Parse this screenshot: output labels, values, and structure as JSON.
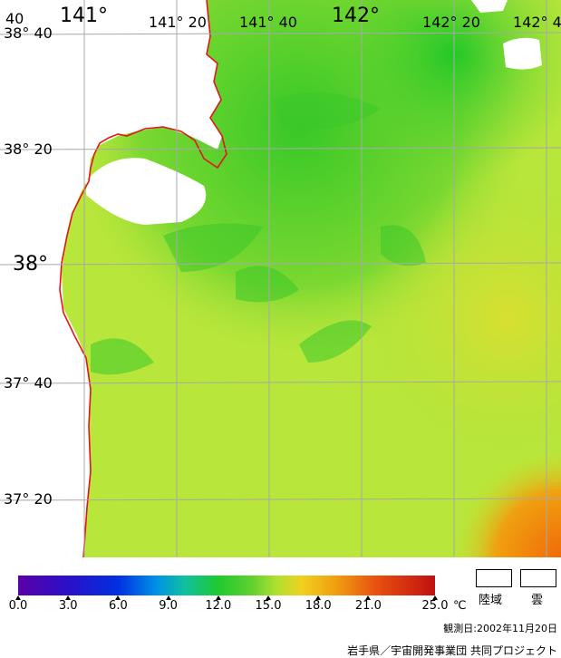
{
  "map": {
    "longitude_labels": [
      "141°",
      "141° 20",
      "141° 40",
      "142°",
      "142° 20",
      "142° 4"
    ],
    "latitude_labels": [
      "38° 40",
      "38° 20",
      "38°",
      "37° 40",
      "37° 20"
    ],
    "corner_label": "40",
    "colors": {
      "sea_base": "#b8e63a",
      "cool_water": "#4fcf2a",
      "warm_water": "#f08a10",
      "coast": "#e3141b",
      "grid": "#a8a8a8",
      "land": "#ffffff"
    }
  },
  "colorbar": {
    "ticks": [
      "0.0",
      "3.0",
      "6.0",
      "9.0",
      "12.0",
      "15.0",
      "18.0",
      "21.0",
      "25.0"
    ],
    "unit": "℃",
    "range": [
      0,
      25
    ]
  },
  "legend": {
    "land": "陸域",
    "cloud": "雲"
  },
  "observation_date": "観測日:2002年11月20日",
  "credit": "岩手県／宇宙開発事業団 共同プロジェクト"
}
